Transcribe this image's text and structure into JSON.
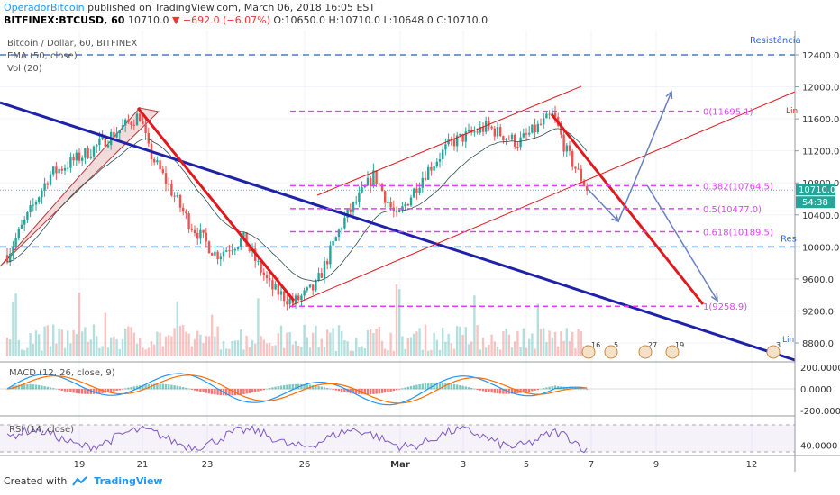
{
  "header": {
    "author": "OperadorBitcoin",
    "published_text": "published on TradingView.com, March 06, 2018 16:05 EST",
    "symbol": "BITFINEX:BTCUSD, 60",
    "last": "10710.0",
    "change": "▼ −692.0 (−6.07%)",
    "ohlc": "O:10650.0 H:10710.0 L:10648.0 C:10710.0"
  },
  "legend": {
    "title": "Bitcoin / Dollar, 60, BITFINEX",
    "ema": "EMA (50, close)",
    "vol": "Vol (20)"
  },
  "macd_label": "MACD (12, 26, close, 9)",
  "rsi_label": "RSI (14, close)",
  "footer": {
    "created": "Created with",
    "brand": "TradingView"
  },
  "annotations": {
    "resistance": "Resistência",
    "resistance_short": "Res",
    "fib_0": "0(11695.1)",
    "fib_382": "0.382(10764.5)",
    "fib_5": "0.5(10477.0)",
    "fib_618": "0.618(10189.5)",
    "fib_1": "1(9258.9)",
    "lin1": "Lin",
    "lin2": "Lin"
  },
  "colors": {
    "up": "#26a69a",
    "down": "#ef5350",
    "fib": "#e040fb",
    "trend_blue": "#1e22aa",
    "trend_red": "#e0191e",
    "arrow": "#6a7fc0",
    "dashed_blue": "#4a7cc4",
    "macd": "#2196f3",
    "signal": "#ff6d00",
    "rsi": "#7e57c2"
  },
  "chart_data": {
    "type": "candlestick",
    "y_axis_ticks": [
      12400,
      12000,
      11600,
      11200,
      10800,
      10400,
      10000,
      9600,
      9200,
      8800
    ],
    "ylim": [
      8650,
      12700
    ],
    "x_ticks": [
      "19",
      "21",
      "23",
      "26",
      "Mar",
      "3",
      "5",
      "7",
      "9",
      "12"
    ],
    "last_price": "10710.0",
    "countdown": "54:38",
    "resistance_levels": [
      12400,
      10000
    ],
    "fib_levels": [
      {
        "ratio": "0",
        "price": 11695.1
      },
      {
        "ratio": "0.382",
        "price": 10764.5
      },
      {
        "ratio": "0.5",
        "price": 10477.0
      },
      {
        "ratio": "0.618",
        "price": 10189.5
      },
      {
        "ratio": "1",
        "price": 9258.9
      }
    ],
    "macd_ticks": [
      "200.0000",
      "0.0000",
      "-200.0000"
    ],
    "rsi_ticks": [
      "40.0000"
    ],
    "event_badges": [
      "16",
      "5",
      "27",
      "19",
      "3"
    ]
  }
}
